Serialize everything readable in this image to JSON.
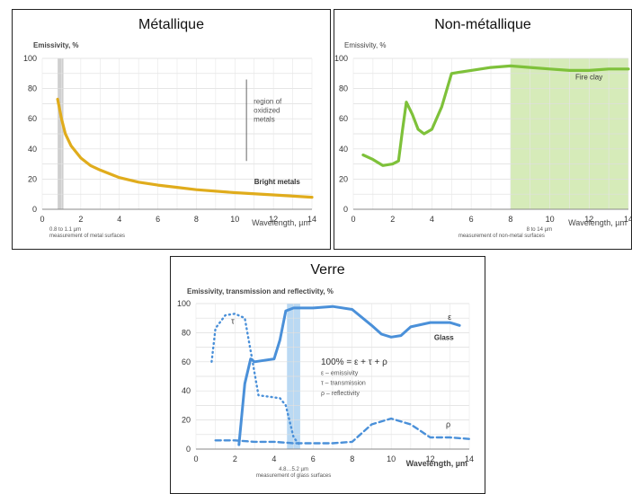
{
  "panels": [
    {
      "title": "Métallique"
    },
    {
      "title": "Non-métallique"
    },
    {
      "title": "Verre"
    }
  ],
  "chart_data": [
    {
      "type": "line",
      "title": "Métallique",
      "ylabel": "Emissivity, %",
      "xlabel": "Wavelength, µm",
      "xlim": [
        0,
        14
      ],
      "ylim": [
        0,
        100
      ],
      "xticks": [
        "0",
        "2",
        "4",
        "6",
        "8",
        "10",
        "12",
        "14"
      ],
      "yticks": [
        "0",
        "20",
        "40",
        "60",
        "80",
        "100"
      ],
      "grid": true,
      "series": [
        {
          "name": "Bright metals",
          "color": "#e0ac1c",
          "x": [
            0.8,
            1.0,
            1.2,
            1.5,
            2,
            2.5,
            3,
            4,
            5,
            6,
            7,
            8,
            10,
            12,
            14
          ],
          "y": [
            73,
            60,
            50,
            42,
            34,
            29,
            26,
            21,
            18,
            16,
            14.5,
            13,
            11,
            9.5,
            8
          ]
        }
      ],
      "annotations": {
        "band_label_1": "0.8 to 1.1 µm",
        "band_label_2": "measurement of metal surfaces",
        "band_range": [
          0.8,
          1.1
        ],
        "oxidized_lines": [
          "region of",
          "oxidized",
          "metals"
        ],
        "oxidized_range": [
          32,
          86
        ]
      }
    },
    {
      "type": "line",
      "title": "Non-métallique",
      "ylabel": "Emissivity, %",
      "xlabel": "Wavelength, µm",
      "xlim": [
        0,
        14
      ],
      "ylim": [
        0,
        100
      ],
      "xticks": [
        "0",
        "2",
        "4",
        "6",
        "8",
        "10",
        "12",
        "14"
      ],
      "yticks": [
        "0",
        "20",
        "40",
        "60",
        "80",
        "100"
      ],
      "grid": true,
      "series": [
        {
          "name": "Fire clay",
          "color": "#7ec13a",
          "x": [
            0.5,
            1,
            1.5,
            2,
            2.3,
            2.5,
            2.7,
            3,
            3.3,
            3.6,
            4,
            4.5,
            5,
            5.5,
            6,
            7,
            8,
            9,
            10,
            11,
            12,
            13,
            14
          ],
          "y": [
            36,
            33,
            29,
            30,
            32,
            52,
            71,
            63,
            53,
            50,
            53,
            68,
            90,
            91,
            92,
            94,
            95,
            94,
            93,
            92,
            92,
            93,
            93
          ]
        }
      ],
      "annotations": {
        "band_label_1": "8 to 14 µm",
        "band_label_2": "measurement of non-metal surfaces",
        "band_range": [
          8,
          14
        ]
      }
    },
    {
      "type": "line",
      "title": "Verre",
      "ylabel": "Emissivity, transmission and reflectivity, %",
      "xlabel": "Wavelength, µm",
      "xlim": [
        0,
        14
      ],
      "ylim": [
        0,
        100
      ],
      "xticks": [
        "0",
        "2",
        "4",
        "6",
        "8",
        "10",
        "12",
        "14"
      ],
      "yticks": [
        "0",
        "20",
        "40",
        "60",
        "80",
        "100"
      ],
      "grid": true,
      "series": [
        {
          "name": "ε",
          "color": "#4a90d9",
          "style": "solid",
          "x": [
            2.2,
            2.5,
            2.8,
            3,
            3.5,
            4,
            4.3,
            4.6,
            5,
            6,
            7,
            8,
            9,
            9.5,
            10,
            10.5,
            11,
            12,
            13,
            13.5
          ],
          "y": [
            3,
            45,
            62,
            60,
            61,
            62,
            75,
            95,
            97,
            97,
            98,
            96,
            85,
            79,
            77,
            78,
            84,
            87,
            87,
            85
          ]
        },
        {
          "name": "τ",
          "color": "#4a90d9",
          "style": "dotted",
          "x": [
            0.8,
            1,
            1.5,
            2,
            2.5,
            2.7,
            2.9,
            3.2,
            4.3,
            4.6,
            5,
            5.3
          ],
          "y": [
            60,
            83,
            92,
            93,
            90,
            75,
            60,
            37,
            35,
            30,
            8,
            3
          ]
        },
        {
          "name": "ρ",
          "color": "#4a90d9",
          "style": "dashed",
          "x": [
            1,
            2,
            3,
            4,
            5,
            6,
            7,
            8,
            9,
            10,
            11,
            12,
            13,
            14
          ],
          "y": [
            6,
            6,
            5,
            5,
            4,
            4,
            4,
            5,
            17,
            21,
            17,
            8,
            8,
            7
          ]
        }
      ],
      "annotations": {
        "band_label_1": "4.8…5.2 µm",
        "band_label_2": "measurement of glass surfaces",
        "band_range": [
          4.8,
          5.2
        ],
        "label_glass": "Glass",
        "formula": "100% = ε + τ + ρ",
        "legend_eps": "ε – emissivity",
        "legend_tau": "τ – transmission",
        "legend_rho": "ρ – reflectivity"
      }
    }
  ]
}
